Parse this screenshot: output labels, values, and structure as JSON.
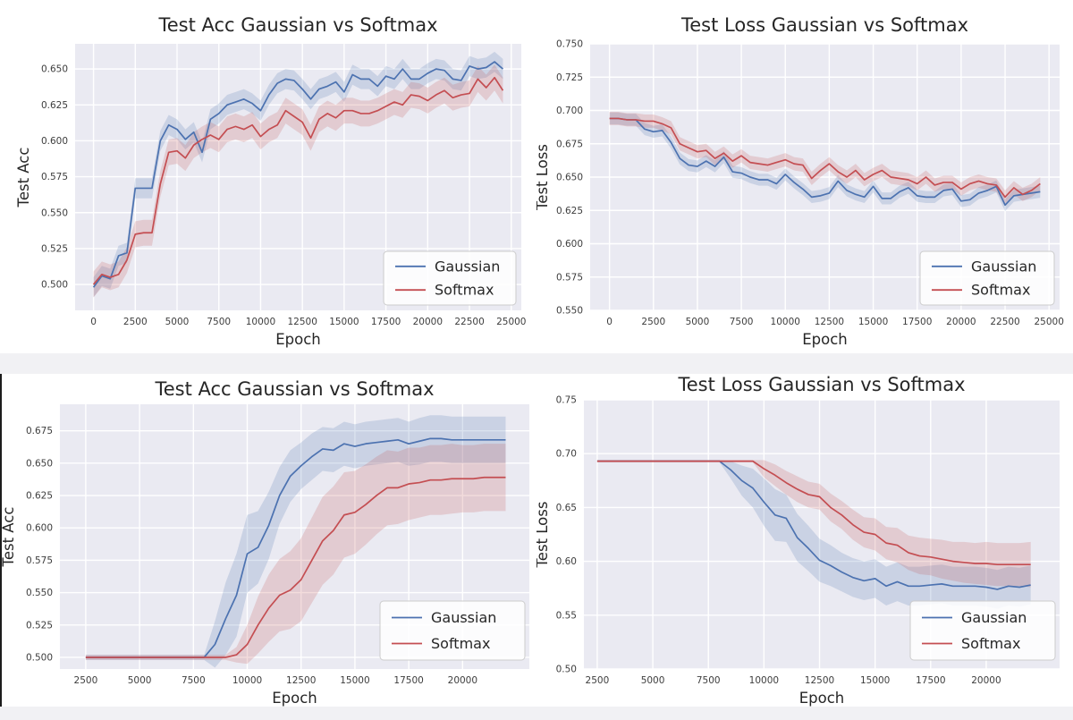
{
  "page": {
    "background_color": "#ffffff",
    "divider_color": "#f1f1f4",
    "bottom_figure_left_border_color": "#1c1c1c"
  },
  "colors": {
    "gaussian_line": "#4c72b0",
    "softmax_line": "#c44e52",
    "plot_background": "#eaeaf2",
    "grid": "#ffffff",
    "text": "#262626",
    "tick_text": "#3d3d3d",
    "legend_border": "#cccccc",
    "legend_fill": "#ffffff"
  },
  "chart_data": [
    {
      "type": "line",
      "title": "Test Acc Gaussian vs Softmax",
      "xlabel": "Epoch",
      "ylabel": "Test Acc",
      "legend_position": "lower right",
      "grid": true,
      "xlim": [
        -1100,
        25600
      ],
      "ylim": [
        0.482,
        0.6675
      ],
      "xticks": [
        0,
        2500,
        5000,
        7500,
        10000,
        12500,
        15000,
        17500,
        20000,
        22500,
        25000
      ],
      "xtick_labels": [
        "0",
        "2500",
        "5000",
        "7500",
        "10000",
        "12500",
        "15000",
        "17500",
        "20000",
        "22500",
        "25000"
      ],
      "yticks": [
        0.5,
        0.525,
        0.55,
        0.575,
        0.6,
        0.625,
        0.65
      ],
      "ytick_labels": [
        "0.500",
        "0.525",
        "0.550",
        "0.575",
        "0.600",
        "0.625",
        "0.650"
      ],
      "x": [
        0,
        500,
        1000,
        1500,
        2000,
        2500,
        3000,
        3500,
        4000,
        4500,
        5000,
        5500,
        6000,
        6500,
        7000,
        7500,
        8000,
        8500,
        9000,
        9500,
        10000,
        10500,
        11000,
        11500,
        12000,
        12500,
        13000,
        13500,
        14000,
        14500,
        15000,
        15500,
        16000,
        16500,
        17000,
        17500,
        18000,
        18500,
        19000,
        19500,
        20000,
        20500,
        21000,
        21500,
        22000,
        22500,
        23000,
        23500,
        24000,
        24500
      ],
      "series": [
        {
          "name": "Gaussian",
          "color": "#4c72b0",
          "band": 0.007,
          "values": [
            0.498,
            0.506,
            0.504,
            0.52,
            0.522,
            0.567,
            0.567,
            0.567,
            0.6,
            0.611,
            0.608,
            0.601,
            0.606,
            0.592,
            0.615,
            0.619,
            0.625,
            0.627,
            0.629,
            0.626,
            0.621,
            0.632,
            0.64,
            0.643,
            0.642,
            0.636,
            0.629,
            0.636,
            0.638,
            0.641,
            0.634,
            0.646,
            0.643,
            0.643,
            0.638,
            0.645,
            0.643,
            0.65,
            0.643,
            0.643,
            0.647,
            0.65,
            0.649,
            0.643,
            0.642,
            0.652,
            0.65,
            0.651,
            0.655,
            0.65
          ]
        },
        {
          "name": "Softmax",
          "color": "#c44e52",
          "band": 0.009,
          "values": [
            0.5,
            0.507,
            0.505,
            0.507,
            0.517,
            0.535,
            0.536,
            0.536,
            0.57,
            0.592,
            0.593,
            0.588,
            0.597,
            0.601,
            0.604,
            0.601,
            0.608,
            0.61,
            0.608,
            0.611,
            0.603,
            0.608,
            0.611,
            0.621,
            0.617,
            0.613,
            0.602,
            0.615,
            0.619,
            0.616,
            0.621,
            0.621,
            0.619,
            0.619,
            0.621,
            0.624,
            0.627,
            0.625,
            0.632,
            0.631,
            0.628,
            0.632,
            0.635,
            0.63,
            0.632,
            0.633,
            0.643,
            0.637,
            0.644,
            0.635
          ]
        }
      ]
    },
    {
      "type": "line",
      "title": "Test Loss Gaussian vs Softmax",
      "xlabel": "Epoch",
      "ylabel": "Test Loss",
      "legend_position": "lower right",
      "grid": true,
      "xlim": [
        -1100,
        25600
      ],
      "ylim": [
        0.55,
        0.75
      ],
      "xticks": [
        0,
        2500,
        5000,
        7500,
        10000,
        12500,
        15000,
        17500,
        20000,
        22500,
        25000
      ],
      "xtick_labels": [
        "0",
        "2500",
        "5000",
        "7500",
        "10000",
        "12500",
        "15000",
        "17500",
        "20000",
        "22500",
        "25000"
      ],
      "yticks": [
        0.55,
        0.575,
        0.6,
        0.625,
        0.65,
        0.675,
        0.7,
        0.725,
        0.75
      ],
      "ytick_labels": [
        "0.550",
        "0.575",
        "0.600",
        "0.625",
        "0.650",
        "0.675",
        "0.700",
        "0.725",
        "0.750"
      ],
      "x": [
        0,
        500,
        1000,
        1500,
        2000,
        2500,
        3000,
        3500,
        4000,
        4500,
        5000,
        5500,
        6000,
        6500,
        7000,
        7500,
        8000,
        8500,
        9000,
        9500,
        10000,
        10500,
        11000,
        11500,
        12000,
        12500,
        13000,
        13500,
        14000,
        14500,
        15000,
        15500,
        16000,
        16500,
        17000,
        17500,
        18000,
        18500,
        19000,
        19500,
        20000,
        20500,
        21000,
        21500,
        22000,
        22500,
        23000,
        23500,
        24000,
        24500
      ],
      "series": [
        {
          "name": "Gaussian",
          "color": "#4c72b0",
          "band": 0.0045,
          "values": [
            0.694,
            0.694,
            0.693,
            0.693,
            0.686,
            0.684,
            0.685,
            0.676,
            0.664,
            0.659,
            0.658,
            0.662,
            0.658,
            0.665,
            0.654,
            0.653,
            0.65,
            0.648,
            0.648,
            0.645,
            0.652,
            0.646,
            0.641,
            0.635,
            0.636,
            0.638,
            0.647,
            0.64,
            0.637,
            0.635,
            0.643,
            0.634,
            0.634,
            0.639,
            0.642,
            0.636,
            0.635,
            0.635,
            0.64,
            0.641,
            0.632,
            0.633,
            0.638,
            0.64,
            0.643,
            0.629,
            0.636,
            0.637,
            0.638,
            0.639
          ]
        },
        {
          "name": "Softmax",
          "color": "#c44e52",
          "band": 0.005,
          "values": [
            0.694,
            0.694,
            0.693,
            0.693,
            0.692,
            0.692,
            0.69,
            0.687,
            0.675,
            0.672,
            0.669,
            0.67,
            0.664,
            0.668,
            0.662,
            0.666,
            0.661,
            0.66,
            0.659,
            0.661,
            0.663,
            0.66,
            0.659,
            0.649,
            0.655,
            0.66,
            0.654,
            0.65,
            0.655,
            0.648,
            0.652,
            0.655,
            0.65,
            0.649,
            0.648,
            0.645,
            0.65,
            0.644,
            0.646,
            0.646,
            0.641,
            0.645,
            0.647,
            0.645,
            0.644,
            0.635,
            0.642,
            0.637,
            0.64,
            0.645
          ]
        }
      ]
    },
    {
      "type": "line",
      "title": "Test Acc Gaussian vs Softmax",
      "xlabel": "Epoch",
      "ylabel": "Test Acc",
      "legend_position": "lower right",
      "grid": true,
      "xlim": [
        1300,
        23100
      ],
      "ylim": [
        0.491,
        0.6955
      ],
      "xticks": [
        2500,
        5000,
        7500,
        10000,
        12500,
        15000,
        17500,
        20000
      ],
      "xtick_labels": [
        "2500",
        "5000",
        "7500",
        "10000",
        "12500",
        "15000",
        "17500",
        "20000"
      ],
      "yticks": [
        0.5,
        0.525,
        0.55,
        0.575,
        0.6,
        0.625,
        0.65,
        0.675
      ],
      "ytick_labels": [
        "0.500",
        "0.525",
        "0.550",
        "0.575",
        "0.600",
        "0.625",
        "0.650",
        "0.675"
      ],
      "x": [
        2500,
        3000,
        3500,
        4000,
        4500,
        5000,
        5500,
        6000,
        6500,
        7000,
        7500,
        8000,
        8500,
        9000,
        9500,
        10000,
        10500,
        11000,
        11500,
        12000,
        12500,
        13000,
        13500,
        14000,
        14500,
        15000,
        15500,
        16000,
        16500,
        17000,
        17500,
        18000,
        18500,
        19000,
        19500,
        20000,
        20500,
        21000,
        21500,
        22000
      ],
      "series": [
        {
          "name": "Gaussian",
          "color": "#4c72b0",
          "band": [
            0.002,
            0.002,
            0.002,
            0.002,
            0.002,
            0.002,
            0.002,
            0.002,
            0.002,
            0.002,
            0.002,
            0.002,
            0.018,
            0.028,
            0.032,
            0.03,
            0.028,
            0.026,
            0.022,
            0.02,
            0.018,
            0.018,
            0.017,
            0.017,
            0.017,
            0.017,
            0.017,
            0.017,
            0.017,
            0.017,
            0.017,
            0.018,
            0.018,
            0.018,
            0.018,
            0.018,
            0.018,
            0.018,
            0.018,
            0.018
          ],
          "values": [
            0.5,
            0.5,
            0.5,
            0.5,
            0.5,
            0.5,
            0.5,
            0.5,
            0.5,
            0.5,
            0.5,
            0.5,
            0.51,
            0.53,
            0.548,
            0.58,
            0.585,
            0.602,
            0.625,
            0.64,
            0.648,
            0.655,
            0.661,
            0.66,
            0.665,
            0.663,
            0.665,
            0.666,
            0.667,
            0.668,
            0.665,
            0.667,
            0.669,
            0.669,
            0.668,
            0.668,
            0.668,
            0.668,
            0.668,
            0.668
          ]
        },
        {
          "name": "Softmax",
          "color": "#c44e52",
          "band": [
            0.002,
            0.002,
            0.002,
            0.002,
            0.002,
            0.002,
            0.002,
            0.002,
            0.002,
            0.002,
            0.002,
            0.002,
            0.002,
            0.002,
            0.006,
            0.015,
            0.022,
            0.026,
            0.028,
            0.03,
            0.032,
            0.033,
            0.034,
            0.034,
            0.033,
            0.032,
            0.031,
            0.03,
            0.029,
            0.028,
            0.028,
            0.027,
            0.027,
            0.027,
            0.027,
            0.026,
            0.026,
            0.026,
            0.026,
            0.026
          ],
          "values": [
            0.5,
            0.5,
            0.5,
            0.5,
            0.5,
            0.5,
            0.5,
            0.5,
            0.5,
            0.5,
            0.5,
            0.5,
            0.5,
            0.5,
            0.502,
            0.51,
            0.525,
            0.538,
            0.548,
            0.552,
            0.56,
            0.575,
            0.59,
            0.598,
            0.61,
            0.612,
            0.618,
            0.625,
            0.631,
            0.631,
            0.634,
            0.635,
            0.637,
            0.637,
            0.638,
            0.638,
            0.638,
            0.639,
            0.639,
            0.639
          ]
        }
      ]
    },
    {
      "type": "line",
      "title": "Test Loss Gaussian vs Softmax",
      "xlabel": "Epoch",
      "ylabel": "Test Loss",
      "legend_position": "lower right",
      "grid": true,
      "xlim": [
        1900,
        23300
      ],
      "ylim": [
        0.5,
        0.75
      ],
      "xticks": [
        2500,
        5000,
        7500,
        10000,
        12500,
        15000,
        17500,
        20000
      ],
      "xtick_labels": [
        "2500",
        "5000",
        "7500",
        "10000",
        "12500",
        "15000",
        "17500",
        "20000"
      ],
      "yticks": [
        0.5,
        0.55,
        0.6,
        0.65,
        0.7,
        0.75
      ],
      "ytick_labels": [
        "0.50",
        "0.55",
        "0.60",
        "0.65",
        "0.70",
        "0.75"
      ],
      "x": [
        2500,
        3000,
        3500,
        4000,
        4500,
        5000,
        5500,
        6000,
        6500,
        7000,
        7500,
        8000,
        8500,
        9000,
        9500,
        10000,
        10500,
        11000,
        11500,
        12000,
        12500,
        13000,
        13500,
        14000,
        14500,
        15000,
        15500,
        16000,
        16500,
        17000,
        17500,
        18000,
        18500,
        19000,
        19500,
        20000,
        20500,
        21000,
        21500,
        22000
      ],
      "series": [
        {
          "name": "Gaussian",
          "color": "#4c72b0",
          "band": [
            0.001,
            0.001,
            0.001,
            0.001,
            0.001,
            0.001,
            0.001,
            0.001,
            0.001,
            0.001,
            0.001,
            0.001,
            0.008,
            0.014,
            0.018,
            0.022,
            0.024,
            0.022,
            0.022,
            0.021,
            0.02,
            0.019,
            0.018,
            0.018,
            0.018,
            0.018,
            0.018,
            0.018,
            0.018,
            0.018,
            0.018,
            0.018,
            0.018,
            0.018,
            0.018,
            0.018,
            0.018,
            0.018,
            0.018,
            0.018
          ],
          "values": [
            0.693,
            0.693,
            0.693,
            0.693,
            0.693,
            0.693,
            0.693,
            0.693,
            0.693,
            0.693,
            0.693,
            0.693,
            0.685,
            0.675,
            0.668,
            0.655,
            0.643,
            0.64,
            0.622,
            0.612,
            0.601,
            0.596,
            0.59,
            0.585,
            0.582,
            0.584,
            0.577,
            0.581,
            0.577,
            0.577,
            0.578,
            0.579,
            0.577,
            0.577,
            0.577,
            0.576,
            0.574,
            0.577,
            0.576,
            0.578
          ]
        },
        {
          "name": "Softmax",
          "color": "#c44e52",
          "band": [
            0.001,
            0.001,
            0.001,
            0.001,
            0.001,
            0.001,
            0.001,
            0.001,
            0.001,
            0.001,
            0.001,
            0.001,
            0.001,
            0.001,
            0.001,
            0.008,
            0.01,
            0.011,
            0.012,
            0.012,
            0.012,
            0.013,
            0.013,
            0.014,
            0.014,
            0.015,
            0.015,
            0.016,
            0.016,
            0.017,
            0.017,
            0.018,
            0.018,
            0.019,
            0.019,
            0.02,
            0.02,
            0.02,
            0.02,
            0.021
          ],
          "values": [
            0.693,
            0.693,
            0.693,
            0.693,
            0.693,
            0.693,
            0.693,
            0.693,
            0.693,
            0.693,
            0.693,
            0.693,
            0.693,
            0.693,
            0.693,
            0.686,
            0.68,
            0.673,
            0.667,
            0.662,
            0.66,
            0.65,
            0.643,
            0.634,
            0.627,
            0.625,
            0.617,
            0.615,
            0.608,
            0.605,
            0.604,
            0.602,
            0.6,
            0.599,
            0.598,
            0.598,
            0.597,
            0.597,
            0.597,
            0.597
          ]
        }
      ]
    }
  ]
}
